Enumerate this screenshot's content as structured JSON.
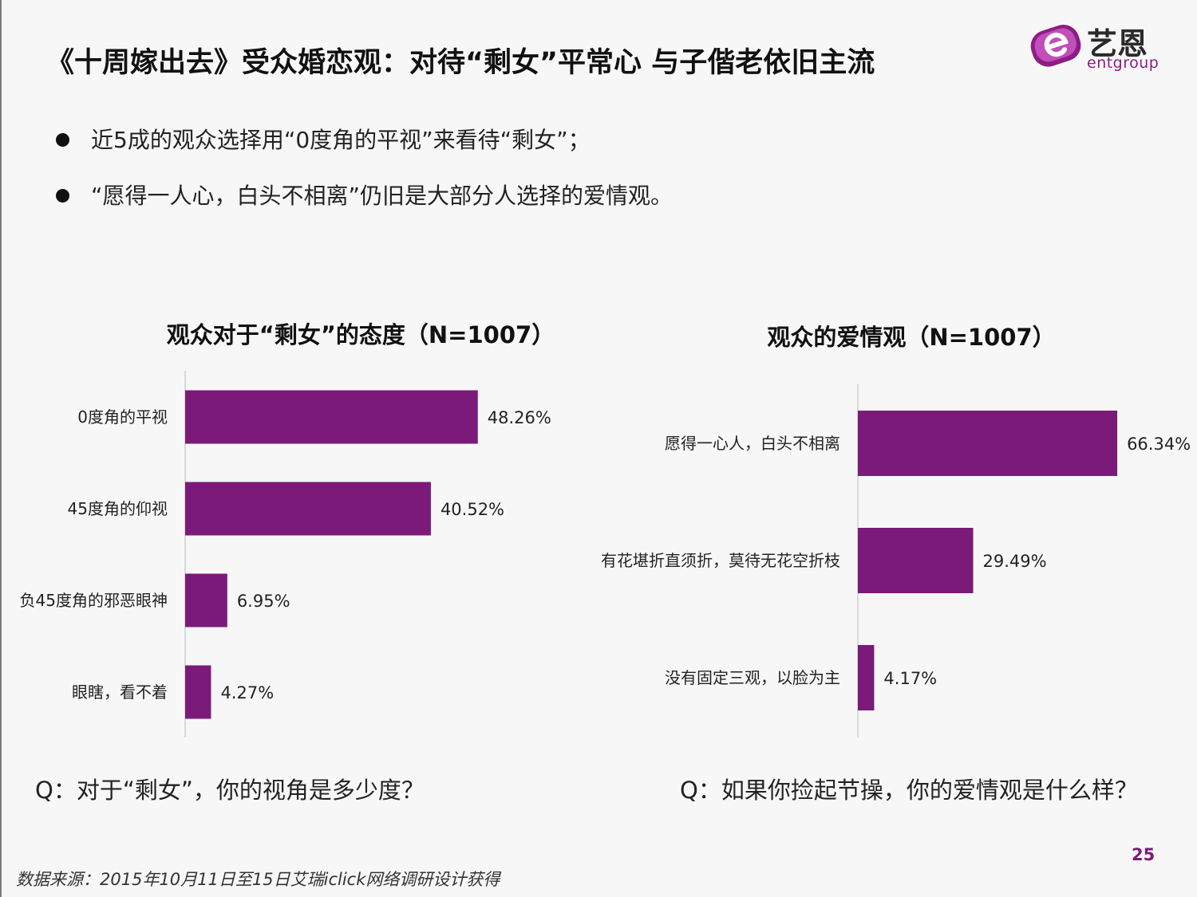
{
  "header": {
    "title": "《十周嫁出去》受众婚恋观：对待“剩女”平常心  与子偕老依旧主流"
  },
  "logo": {
    "brand_cn": "艺恩",
    "brand_en": "entgroup",
    "colors": {
      "primary": "#8e1c86",
      "secondary": "#c04fb8"
    }
  },
  "bullets": [
    "近5成的观众选择用“0度角的平视”来看待“剩女”；",
    "“愿得一人心，白头不相离”仍旧是大部分人选择的爱情观。"
  ],
  "chart_data": [
    {
      "type": "bar",
      "orientation": "horizontal",
      "title": "观众对于“剩女”的态度（N=1007）",
      "categories": [
        "0度角的平视",
        "45度角的仰视",
        "负45度角的邪恶眼神",
        "眼瞎，看不着"
      ],
      "values": [
        48.26,
        40.52,
        6.95,
        4.27
      ],
      "value_labels": [
        "48.26%",
        "40.52%",
        "6.95%",
        "4.27%"
      ],
      "unit": "%",
      "xlim": [
        0,
        100
      ],
      "grid": false,
      "bar_color": "#7b1a79",
      "question": "Q：对于“剩女”，你的视角是多少度？"
    },
    {
      "type": "bar",
      "orientation": "horizontal",
      "title": "观众的爱情观（N=1007）",
      "categories": [
        "愿得一心人，白头不相离",
        "有花堪折直须折，莫待无花空折枝",
        "没有固定三观，以脸为主"
      ],
      "values": [
        66.34,
        29.49,
        4.17
      ],
      "value_labels": [
        "66.34%",
        "29.49%",
        "4.17%"
      ],
      "unit": "%",
      "xlim": [
        0,
        100
      ],
      "grid": false,
      "bar_color": "#7b1a79",
      "question": "Q：如果你捡起节操，你的爱情观是什么样？"
    }
  ],
  "footer": {
    "source": "数据来源：2015年10月11日至15日艾瑞iclick网络调研设计获得",
    "page_number": "25"
  }
}
